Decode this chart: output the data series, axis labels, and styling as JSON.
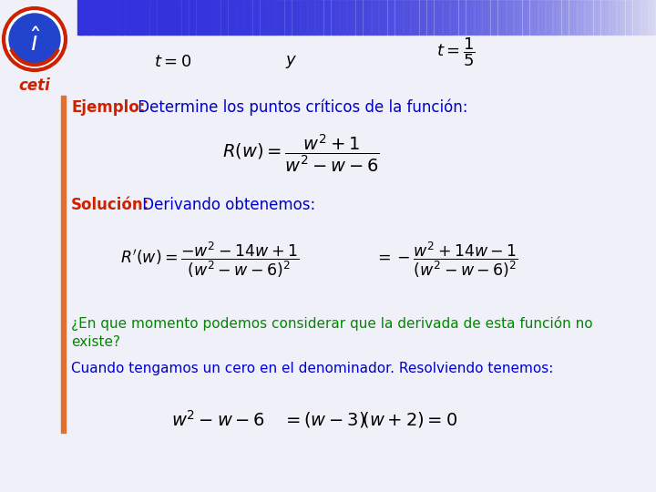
{
  "bg_color": "#f0f0f8",
  "header_bar_color": "#3333dd",
  "left_bar_color": "#e07030",
  "ejemplo_label": "Ejemplo:",
  "ejemplo_color": "#cc2200",
  "ejemplo_text": " Determine los puntos críticos de la función:",
  "ejemplo_text_color": "#0000cc",
  "solucion_label": "Solución:",
  "solucion_color": "#cc2200",
  "solucion_text": " Derivando obtenemos:",
  "solucion_text_color": "#0000cc",
  "question_line1": "¿En que momento podemos considerar que la derivada de esta función no",
  "question_line2": "existe?",
  "question_color": "#008800",
  "cuando_text": "Cuando tengamos un cero en el denominador. Resolviendo tenemos:",
  "cuando_color": "#0000cc",
  "ceti_text": "ceti",
  "ceti_color": "#cc2200"
}
